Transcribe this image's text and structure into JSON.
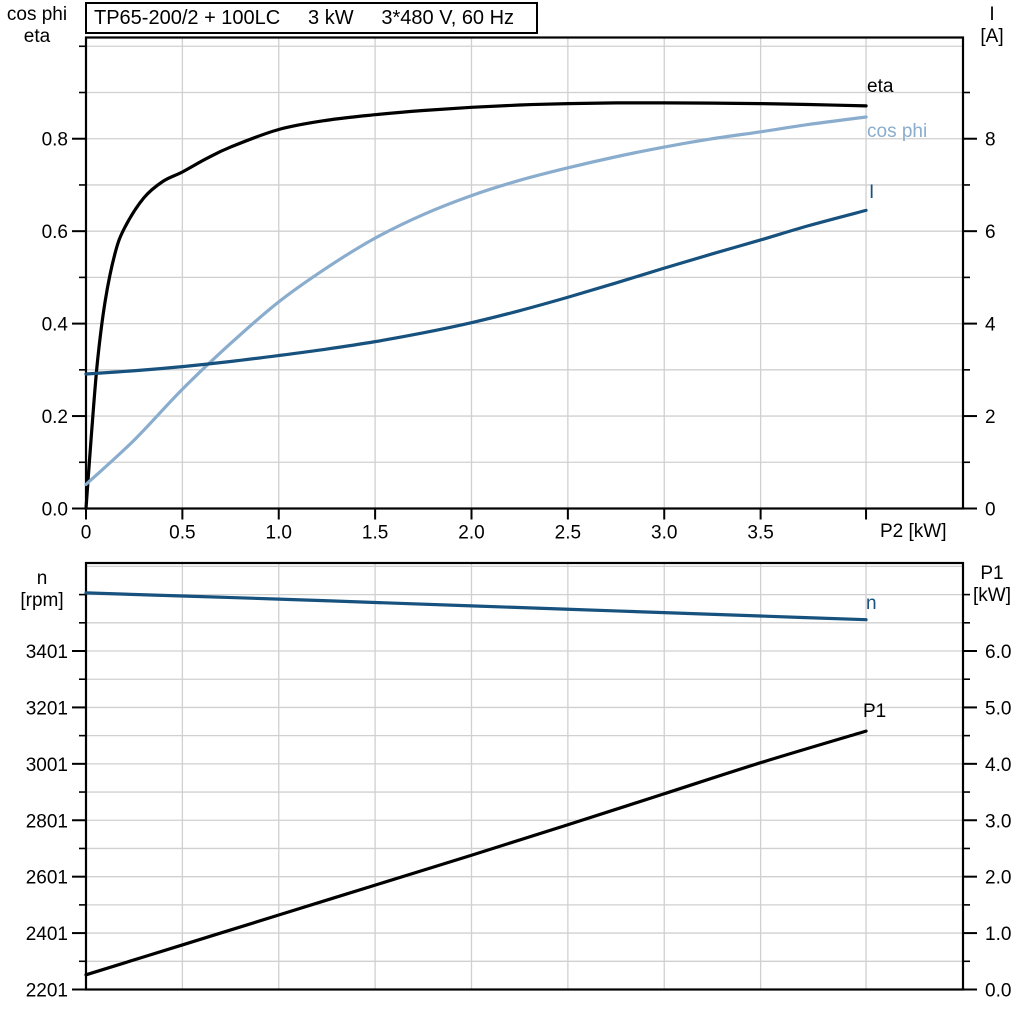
{
  "title_box": {
    "text": "TP65-200/2 + 100LC     3 kW     3*480 V, 60 Hz"
  },
  "colors": {
    "curve_black": "#000000",
    "curve_dark_blue": "#17517e",
    "curve_light_blue": "#8aadce",
    "gridline": "#d0d0d0",
    "frame": "#000000"
  },
  "chart_data": [
    {
      "type": "line",
      "title": "TP65-200/2 + 100LC     3 kW     3*480 V, 60 Hz",
      "x_axis": {
        "label": "P2 [kW]",
        "range": [
          0,
          4.55
        ],
        "major_ticks": [
          0,
          0.5,
          1.0,
          1.5,
          2.0,
          2.5,
          3.0,
          3.5
        ],
        "tick_labels": [
          "0",
          "0.5",
          "1.0",
          "1.5",
          "2.0",
          "2.5",
          "3.0",
          "3.5"
        ],
        "end_tick": 4.047,
        "grid_ticks": [
          0.5,
          1.0,
          1.5,
          2.0,
          2.5,
          3.0,
          3.5,
          4.047
        ]
      },
      "y_left": {
        "label1": "cos phi",
        "label2": "eta",
        "range": [
          0,
          1.019
        ],
        "major_ticks": [
          0,
          0.2,
          0.4,
          0.6,
          0.8
        ],
        "tick_labels": [
          "0.0",
          "0.2",
          "0.4",
          "0.6",
          "0.8"
        ],
        "minor_ticks": [
          0.1,
          0.3,
          0.5,
          0.7,
          0.9,
          1.0
        ],
        "grid_ticks": [
          0.1,
          0.2,
          0.3,
          0.4,
          0.5,
          0.6,
          0.7,
          0.8,
          0.9,
          1.0
        ]
      },
      "y_right": {
        "label1": "I",
        "label2": "[A]",
        "range": [
          0,
          10.19
        ],
        "major_ticks": [
          0,
          2,
          4,
          6,
          8
        ],
        "tick_labels": [
          "0",
          "2",
          "4",
          "6",
          "8"
        ],
        "minor_ticks": [
          1,
          3,
          5,
          7,
          9
        ]
      },
      "series": [
        {
          "name": "eta",
          "axis": "left",
          "color": "#000000",
          "points": [
            [
              0,
              0
            ],
            [
              0.03,
              0.17
            ],
            [
              0.06,
              0.32
            ],
            [
              0.1,
              0.45
            ],
            [
              0.15,
              0.551
            ],
            [
              0.2,
              0.607
            ],
            [
              0.3,
              0.672
            ],
            [
              0.4,
              0.708
            ],
            [
              0.5,
              0.728
            ],
            [
              0.625,
              0.757
            ],
            [
              0.75,
              0.782
            ],
            [
              1.0,
              0.82
            ],
            [
              1.25,
              0.84
            ],
            [
              1.5,
              0.852
            ],
            [
              1.75,
              0.861
            ],
            [
              2.0,
              0.868
            ],
            [
              2.25,
              0.873
            ],
            [
              2.5,
              0.876
            ],
            [
              2.75,
              0.8775
            ],
            [
              3.0,
              0.8775
            ],
            [
              3.25,
              0.877
            ],
            [
              3.5,
              0.876
            ],
            [
              3.75,
              0.874
            ],
            [
              4.047,
              0.871
            ]
          ]
        },
        {
          "name": "cos phi",
          "axis": "left",
          "color": "#8aadce",
          "points": [
            [
              0,
              0.052
            ],
            [
              0.25,
              0.148
            ],
            [
              0.5,
              0.258
            ],
            [
              0.75,
              0.357
            ],
            [
              1.0,
              0.447
            ],
            [
              1.25,
              0.521
            ],
            [
              1.5,
              0.585
            ],
            [
              1.75,
              0.636
            ],
            [
              2.0,
              0.677
            ],
            [
              2.25,
              0.71
            ],
            [
              2.5,
              0.737
            ],
            [
              2.75,
              0.761
            ],
            [
              3.0,
              0.782
            ],
            [
              3.25,
              0.8
            ],
            [
              3.5,
              0.815
            ],
            [
              3.75,
              0.831
            ],
            [
              4.047,
              0.847
            ]
          ]
        },
        {
          "name": "I",
          "axis": "right",
          "color": "#17517e",
          "points": [
            [
              0,
              2.91
            ],
            [
              0.25,
              2.98
            ],
            [
              0.5,
              3.07
            ],
            [
              0.75,
              3.18
            ],
            [
              1.0,
              3.31
            ],
            [
              1.25,
              3.45
            ],
            [
              1.5,
              3.61
            ],
            [
              1.75,
              3.8
            ],
            [
              2.0,
              4.02
            ],
            [
              2.25,
              4.28
            ],
            [
              2.5,
              4.57
            ],
            [
              2.75,
              4.88
            ],
            [
              3.0,
              5.2
            ],
            [
              3.25,
              5.51
            ],
            [
              3.5,
              5.81
            ],
            [
              3.75,
              6.12
            ],
            [
              4.047,
              6.45
            ]
          ]
        }
      ]
    },
    {
      "type": "line",
      "x_axis": {
        "range": [
          0,
          4.55
        ],
        "end_tick": 4.047,
        "grid_ticks": [
          0.5,
          1.0,
          1.5,
          2.0,
          2.5,
          3.0,
          3.5,
          4.047
        ]
      },
      "y_left": {
        "label1": "n",
        "label2": "[rpm]",
        "range": [
          2201,
          3713
        ],
        "major_ticks": [
          2201,
          2401,
          2601,
          2801,
          3001,
          3201,
          3401
        ],
        "tick_labels": [
          "2201",
          "2401",
          "2601",
          "2801",
          "3001",
          "3201",
          "3401"
        ],
        "minor_ticks": [
          2301,
          2501,
          2701,
          2901,
          3101,
          3301,
          3501,
          3601
        ],
        "grid_ticks": [
          2301,
          2401,
          2501,
          2601,
          2701,
          2801,
          2901,
          3001,
          3101,
          3201,
          3301,
          3401,
          3501,
          3601,
          3701
        ]
      },
      "y_right": {
        "label1": "P1",
        "label2": "[kW]",
        "range": [
          0,
          7.56
        ],
        "major_ticks": [
          0,
          1,
          2,
          3,
          4,
          5,
          6
        ],
        "tick_labels": [
          "0.0",
          "1.0",
          "2.0",
          "3.0",
          "4.0",
          "5.0",
          "6.0"
        ],
        "minor_ticks": [
          0.5,
          1.5,
          2.5,
          3.5,
          4.5,
          5.5,
          6.5,
          7.0
        ]
      },
      "series": [
        {
          "name": "n",
          "axis": "left",
          "color": "#17517e",
          "points": [
            [
              0,
              3607
            ],
            [
              0.5,
              3596
            ],
            [
              1.0,
              3585
            ],
            [
              1.5,
              3573
            ],
            [
              2.0,
              3561
            ],
            [
              2.5,
              3549
            ],
            [
              3.0,
              3537
            ],
            [
              3.5,
              3525
            ],
            [
              4.047,
              3512
            ]
          ]
        },
        {
          "name": "P1",
          "axis": "right",
          "color": "#000000",
          "points": [
            [
              0,
              0.26
            ],
            [
              0.5,
              0.79
            ],
            [
              1.0,
              1.32
            ],
            [
              1.5,
              1.85
            ],
            [
              2.0,
              2.38
            ],
            [
              2.5,
              2.92
            ],
            [
              3.0,
              3.47
            ],
            [
              3.5,
              4.02
            ],
            [
              4.047,
              4.58
            ]
          ]
        }
      ]
    }
  ]
}
